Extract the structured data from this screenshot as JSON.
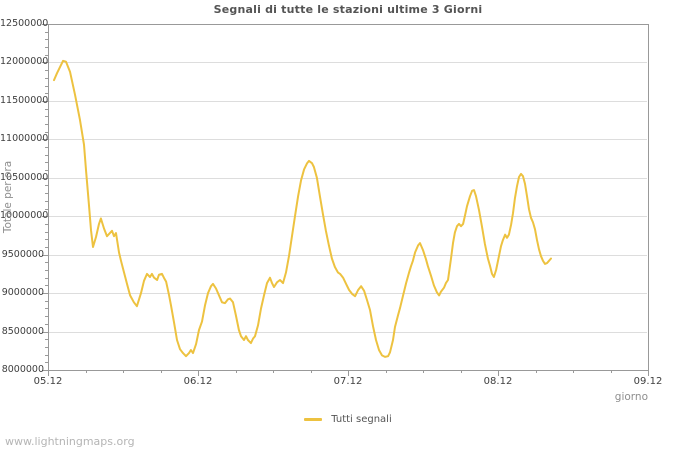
{
  "page": {
    "footer": "www.lightningmaps.org"
  },
  "chart_data": {
    "type": "line",
    "title": "Segnali di tutte le stazioni ultime 3 Giorni",
    "xlabel": "giorno",
    "ylabel": "Totale per ora",
    "grid": {
      "horizontal": true,
      "vertical": false
    },
    "x_axis": {
      "range_days": [
        0,
        4
      ],
      "minor_step_days": 0.25,
      "major_ticks": [
        {
          "t": 0,
          "label": "05.12"
        },
        {
          "t": 1,
          "label": "06.12"
        },
        {
          "t": 2,
          "label": "07.12"
        },
        {
          "t": 3,
          "label": "08.12"
        },
        {
          "t": 4,
          "label": "09.12"
        }
      ]
    },
    "y_axis": {
      "range": [
        8000000,
        12500000
      ],
      "major_step": 500000,
      "minor_step": 100000,
      "tick_labels": [
        {
          "v": 8.0,
          "label": "8000000"
        },
        {
          "v": 8.5,
          "label": "8500000"
        },
        {
          "v": 9.0,
          "label": "9000000"
        },
        {
          "v": 9.5,
          "label": "9500000"
        },
        {
          "v": 10.0,
          "label": "10000000"
        },
        {
          "v": 10.5,
          "label": "10500000"
        },
        {
          "v": 11.0,
          "label": "11000000"
        },
        {
          "v": 11.5,
          "label": "11500000"
        },
        {
          "v": 12.0,
          "label": "12000000"
        },
        {
          "v": 12.5,
          "label": "12500000"
        }
      ]
    },
    "legend": {
      "position": "bottom-center",
      "entries": [
        {
          "label": "Tutti segnali",
          "color": "#edc240"
        }
      ]
    },
    "colors": {
      "line": "#edc240",
      "grid": "#dddddd",
      "border": "#999999",
      "tick": "#999999",
      "tick_text": "#3f3f3f",
      "axis_title_text": "#8e8e8e",
      "title_text": "#545454",
      "footer_text": "#b5b5b5"
    },
    "series": [
      {
        "name": "Tutti segnali",
        "color": "#edc240",
        "value_unit": 1000000,
        "points_t_days_v_millions": [
          [
            0.04,
            11.77
          ],
          [
            0.06,
            11.86
          ],
          [
            0.08,
            11.94
          ],
          [
            0.1,
            12.02
          ],
          [
            0.12,
            12.01
          ],
          [
            0.147,
            11.88
          ],
          [
            0.18,
            11.58
          ],
          [
            0.213,
            11.25
          ],
          [
            0.24,
            10.93
          ],
          [
            0.253,
            10.6
          ],
          [
            0.273,
            10.14
          ],
          [
            0.287,
            9.82
          ],
          [
            0.3,
            9.6
          ],
          [
            0.32,
            9.73
          ],
          [
            0.34,
            9.9
          ],
          [
            0.353,
            9.97
          ],
          [
            0.373,
            9.84
          ],
          [
            0.393,
            9.74
          ],
          [
            0.413,
            9.78
          ],
          [
            0.427,
            9.81
          ],
          [
            0.44,
            9.74
          ],
          [
            0.453,
            9.78
          ],
          [
            0.473,
            9.53
          ],
          [
            0.487,
            9.42
          ],
          [
            0.507,
            9.27
          ],
          [
            0.527,
            9.12
          ],
          [
            0.547,
            8.97
          ],
          [
            0.573,
            8.88
          ],
          [
            0.593,
            8.83
          ],
          [
            0.62,
            9.0
          ],
          [
            0.64,
            9.16
          ],
          [
            0.66,
            9.25
          ],
          [
            0.68,
            9.21
          ],
          [
            0.693,
            9.25
          ],
          [
            0.707,
            9.2
          ],
          [
            0.727,
            9.17
          ],
          [
            0.74,
            9.24
          ],
          [
            0.76,
            9.25
          ],
          [
            0.773,
            9.2
          ],
          [
            0.787,
            9.15
          ],
          [
            0.807,
            8.97
          ],
          [
            0.82,
            8.84
          ],
          [
            0.84,
            8.62
          ],
          [
            0.86,
            8.39
          ],
          [
            0.88,
            8.27
          ],
          [
            0.9,
            8.22
          ],
          [
            0.92,
            8.18
          ],
          [
            0.94,
            8.22
          ],
          [
            0.953,
            8.26
          ],
          [
            0.967,
            8.22
          ],
          [
            0.987,
            8.34
          ],
          [
            1.007,
            8.52
          ],
          [
            1.027,
            8.63
          ],
          [
            1.047,
            8.84
          ],
          [
            1.067,
            9.0
          ],
          [
            1.087,
            9.09
          ],
          [
            1.1,
            9.12
          ],
          [
            1.12,
            9.06
          ],
          [
            1.14,
            8.97
          ],
          [
            1.16,
            8.88
          ],
          [
            1.18,
            8.87
          ],
          [
            1.2,
            8.92
          ],
          [
            1.213,
            8.93
          ],
          [
            1.233,
            8.88
          ],
          [
            1.253,
            8.71
          ],
          [
            1.273,
            8.52
          ],
          [
            1.287,
            8.44
          ],
          [
            1.307,
            8.39
          ],
          [
            1.32,
            8.44
          ],
          [
            1.333,
            8.39
          ],
          [
            1.353,
            8.35
          ],
          [
            1.367,
            8.41
          ],
          [
            1.38,
            8.44
          ],
          [
            1.4,
            8.58
          ],
          [
            1.42,
            8.8
          ],
          [
            1.44,
            8.97
          ],
          [
            1.46,
            9.13
          ],
          [
            1.48,
            9.2
          ],
          [
            1.493,
            9.13
          ],
          [
            1.507,
            9.08
          ],
          [
            1.527,
            9.14
          ],
          [
            1.547,
            9.17
          ],
          [
            1.567,
            9.13
          ],
          [
            1.587,
            9.27
          ],
          [
            1.607,
            9.49
          ],
          [
            1.627,
            9.75
          ],
          [
            1.647,
            10.01
          ],
          [
            1.667,
            10.26
          ],
          [
            1.687,
            10.47
          ],
          [
            1.707,
            10.61
          ],
          [
            1.727,
            10.69
          ],
          [
            1.74,
            10.72
          ],
          [
            1.76,
            10.69
          ],
          [
            1.773,
            10.64
          ],
          [
            1.793,
            10.5
          ],
          [
            1.813,
            10.26
          ],
          [
            1.833,
            10.03
          ],
          [
            1.853,
            9.81
          ],
          [
            1.873,
            9.62
          ],
          [
            1.893,
            9.45
          ],
          [
            1.913,
            9.34
          ],
          [
            1.933,
            9.27
          ],
          [
            1.947,
            9.25
          ],
          [
            1.967,
            9.2
          ],
          [
            1.987,
            9.12
          ],
          [
            2.007,
            9.04
          ],
          [
            2.027,
            8.99
          ],
          [
            2.047,
            8.96
          ],
          [
            2.067,
            9.04
          ],
          [
            2.087,
            9.09
          ],
          [
            2.107,
            9.03
          ],
          [
            2.127,
            8.91
          ],
          [
            2.147,
            8.78
          ],
          [
            2.167,
            8.57
          ],
          [
            2.187,
            8.39
          ],
          [
            2.207,
            8.26
          ],
          [
            2.227,
            8.19
          ],
          [
            2.247,
            8.17
          ],
          [
            2.267,
            8.18
          ],
          [
            2.28,
            8.23
          ],
          [
            2.3,
            8.39
          ],
          [
            2.313,
            8.56
          ],
          [
            2.333,
            8.71
          ],
          [
            2.347,
            8.81
          ],
          [
            2.367,
            8.97
          ],
          [
            2.387,
            9.13
          ],
          [
            2.407,
            9.27
          ],
          [
            2.42,
            9.35
          ],
          [
            2.433,
            9.42
          ],
          [
            2.447,
            9.53
          ],
          [
            2.467,
            9.62
          ],
          [
            2.48,
            9.65
          ],
          [
            2.5,
            9.56
          ],
          [
            2.52,
            9.44
          ],
          [
            2.533,
            9.35
          ],
          [
            2.553,
            9.23
          ],
          [
            2.573,
            9.1
          ],
          [
            2.593,
            9.01
          ],
          [
            2.607,
            8.97
          ],
          [
            2.62,
            9.02
          ],
          [
            2.64,
            9.07
          ],
          [
            2.653,
            9.13
          ],
          [
            2.667,
            9.17
          ],
          [
            2.687,
            9.45
          ],
          [
            2.7,
            9.65
          ],
          [
            2.713,
            9.79
          ],
          [
            2.727,
            9.87
          ],
          [
            2.74,
            9.9
          ],
          [
            2.753,
            9.87
          ],
          [
            2.767,
            9.9
          ],
          [
            2.78,
            10.01
          ],
          [
            2.793,
            10.13
          ],
          [
            2.813,
            10.26
          ],
          [
            2.827,
            10.33
          ],
          [
            2.84,
            10.34
          ],
          [
            2.853,
            10.26
          ],
          [
            2.873,
            10.08
          ],
          [
            2.893,
            9.87
          ],
          [
            2.913,
            9.64
          ],
          [
            2.933,
            9.45
          ],
          [
            2.947,
            9.35
          ],
          [
            2.96,
            9.25
          ],
          [
            2.973,
            9.21
          ],
          [
            2.987,
            9.3
          ],
          [
            3.007,
            9.49
          ],
          [
            3.02,
            9.61
          ],
          [
            3.033,
            9.69
          ],
          [
            3.047,
            9.76
          ],
          [
            3.06,
            9.72
          ],
          [
            3.073,
            9.76
          ],
          [
            3.087,
            9.89
          ],
          [
            3.1,
            10.04
          ],
          [
            3.113,
            10.24
          ],
          [
            3.127,
            10.39
          ],
          [
            3.14,
            10.51
          ],
          [
            3.153,
            10.55
          ],
          [
            3.167,
            10.52
          ],
          [
            3.18,
            10.42
          ],
          [
            3.193,
            10.26
          ],
          [
            3.207,
            10.09
          ],
          [
            3.22,
            9.98
          ],
          [
            3.233,
            9.92
          ],
          [
            3.247,
            9.83
          ],
          [
            3.26,
            9.69
          ],
          [
            3.273,
            9.57
          ],
          [
            3.287,
            9.48
          ],
          [
            3.3,
            9.42
          ],
          [
            3.313,
            9.38
          ],
          [
            3.327,
            9.39
          ],
          [
            3.34,
            9.42
          ],
          [
            3.353,
            9.45
          ]
        ]
      }
    ]
  }
}
